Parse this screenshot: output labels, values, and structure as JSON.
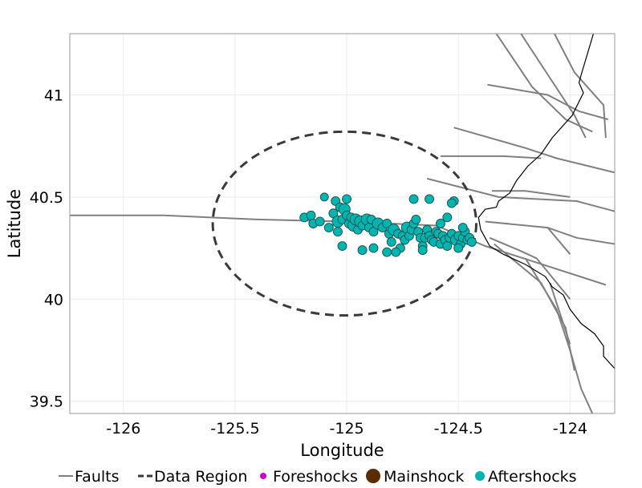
{
  "chart_data": {
    "type": "scatter",
    "title": "",
    "xlabel": "Longitude",
    "ylabel": "Latitude",
    "xlim": [
      -126.24,
      -123.8
    ],
    "ylim": [
      39.44,
      41.3
    ],
    "x_ticks": [
      -126,
      -125.5,
      -125,
      -124.5,
      -124
    ],
    "x_tick_labels": [
      "-126",
      "-125.5",
      "-125",
      "-124.5",
      "-124"
    ],
    "y_ticks": [
      39.5,
      40,
      40.5,
      41
    ],
    "y_tick_labels": [
      "39.5",
      "40",
      "40.5",
      "41"
    ],
    "grid": true,
    "legend_position": "bottom",
    "legend": [
      {
        "label": "Faults",
        "kind": "solid-line",
        "color": "#808080"
      },
      {
        "label": "Data Region",
        "kind": "dashed-line",
        "color": "#3a3a3a"
      },
      {
        "label": "Foreshocks",
        "kind": "small-point",
        "color": "#cc00cc"
      },
      {
        "label": "Mainshock",
        "kind": "large-point",
        "color": "#5a2d00"
      },
      {
        "label": "Aftershocks",
        "kind": "point",
        "color": "#00b5b0"
      }
    ],
    "data_region": {
      "center": [
        -125.01,
        40.37
      ],
      "radius_lon": 0.59,
      "radius_lat": 0.45
    },
    "coastline": [
      [
        -123.89,
        41.32
      ],
      [
        -123.95,
        41.1
      ],
      [
        -123.96,
        41.06
      ],
      [
        -123.94,
        41.01
      ],
      [
        -123.99,
        40.9
      ],
      [
        -124.08,
        40.79
      ],
      [
        -124.13,
        40.71
      ],
      [
        -124.19,
        40.65
      ],
      [
        -124.24,
        40.58
      ],
      [
        -124.27,
        40.52
      ],
      [
        -124.32,
        40.48
      ],
      [
        -124.33,
        40.45
      ],
      [
        -124.38,
        40.44
      ],
      [
        -124.41,
        40.4
      ],
      [
        -124.4,
        40.34
      ],
      [
        -124.38,
        40.3
      ],
      [
        -124.36,
        40.26
      ],
      [
        -124.3,
        40.22
      ],
      [
        -124.2,
        40.17
      ],
      [
        -124.11,
        40.11
      ],
      [
        -124.08,
        40.06
      ],
      [
        -124.03,
        40.02
      ],
      [
        -124.0,
        39.95
      ],
      [
        -123.95,
        39.88
      ],
      [
        -123.89,
        39.83
      ],
      [
        -123.85,
        39.77
      ],
      [
        -123.85,
        39.72
      ],
      [
        -123.8,
        39.66
      ]
    ],
    "faults": [
      [
        [
          -126.24,
          40.41
        ],
        [
          -125.82,
          40.41
        ],
        [
          -125.4,
          40.39
        ],
        [
          -125.0,
          40.38
        ],
        [
          -124.6,
          40.36
        ],
        [
          -124.38,
          40.26
        ],
        [
          -124.18,
          40.19
        ],
        [
          -123.84,
          40.07
        ]
      ],
      [
        [
          -124.33,
          41.3
        ],
        [
          -124.17,
          41.04
        ],
        [
          -124.02,
          40.88
        ],
        [
          -123.9,
          40.82
        ]
      ],
      [
        [
          -124.22,
          41.3
        ],
        [
          -124.1,
          41.1
        ],
        [
          -123.98,
          40.9
        ],
        [
          -123.93,
          40.79
        ]
      ],
      [
        [
          -124.07,
          41.3
        ],
        [
          -123.98,
          41.11
        ],
        [
          -123.85,
          40.95
        ],
        [
          -123.84,
          40.79
        ]
      ],
      [
        [
          -124.37,
          41.05
        ],
        [
          -124.1,
          41.0
        ],
        [
          -123.96,
          40.92
        ],
        [
          -123.83,
          40.88
        ]
      ],
      [
        [
          -124.52,
          40.84
        ],
        [
          -124.2,
          40.74
        ],
        [
          -124.06,
          40.69
        ],
        [
          -123.8,
          40.62
        ]
      ],
      [
        [
          -124.58,
          40.7
        ],
        [
          -124.3,
          40.7
        ],
        [
          -124.13,
          40.69
        ]
      ],
      [
        [
          -124.64,
          40.59
        ],
        [
          -124.32,
          40.5
        ],
        [
          -123.97,
          40.48
        ],
        [
          -123.8,
          40.43
        ]
      ],
      [
        [
          -124.35,
          40.53
        ],
        [
          -124.2,
          40.53
        ],
        [
          -124.0,
          40.5
        ]
      ],
      [
        [
          -124.38,
          40.38
        ],
        [
          -124.1,
          40.35
        ],
        [
          -123.97,
          40.3
        ],
        [
          -123.8,
          40.27
        ]
      ],
      [
        [
          -124.1,
          40.35
        ],
        [
          -124.0,
          40.22
        ]
      ],
      [
        [
          -124.36,
          40.3
        ],
        [
          -124.23,
          40.24
        ],
        [
          -124.15,
          40.2
        ],
        [
          -124.0,
          40.0
        ]
      ],
      [
        [
          -124.34,
          40.27
        ],
        [
          -124.13,
          40.08
        ],
        [
          -124.02,
          39.86
        ],
        [
          -123.98,
          39.65
        ]
      ],
      [
        [
          -124.2,
          40.2
        ],
        [
          -124.06,
          39.95
        ],
        [
          -124.0,
          39.75
        ],
        [
          -123.95,
          39.56
        ],
        [
          -123.9,
          39.44
        ]
      ],
      [
        [
          -124.09,
          40.08
        ],
        [
          -124.0,
          39.78
        ]
      ]
    ],
    "series": [
      {
        "name": "Aftershocks",
        "color": "#00b5b0",
        "points": [
          [
            -125.19,
            40.4,
            1
          ],
          [
            -125.16,
            40.41,
            1
          ],
          [
            -125.15,
            40.37,
            1
          ],
          [
            -125.12,
            40.38,
            1
          ],
          [
            -125.1,
            40.5,
            0
          ],
          [
            -125.08,
            40.35,
            1
          ],
          [
            -125.06,
            40.42,
            1
          ],
          [
            -125.05,
            40.48,
            1
          ],
          [
            -125.04,
            40.38,
            2
          ],
          [
            -125.04,
            40.33,
            1
          ],
          [
            -125.03,
            40.45,
            1
          ],
          [
            -125.02,
            40.39,
            1
          ],
          [
            -125.01,
            40.44,
            2
          ],
          [
            -125.0,
            40.41,
            1
          ],
          [
            -125.0,
            40.49,
            1
          ],
          [
            -124.99,
            40.37,
            1
          ],
          [
            -124.98,
            40.4,
            1
          ],
          [
            -124.97,
            40.36,
            2
          ],
          [
            -124.96,
            40.39,
            2
          ],
          [
            -124.95,
            40.34,
            1
          ],
          [
            -124.94,
            40.38,
            2
          ],
          [
            -124.93,
            40.36,
            1
          ],
          [
            -124.91,
            40.39,
            2
          ],
          [
            -124.9,
            40.35,
            1
          ],
          [
            -124.89,
            40.39,
            1
          ],
          [
            -124.88,
            40.33,
            1
          ],
          [
            -124.86,
            40.37,
            2
          ],
          [
            -124.84,
            40.35,
            1
          ],
          [
            -124.82,
            40.37,
            1
          ],
          [
            -124.81,
            40.32,
            1
          ],
          [
            -124.8,
            40.28,
            1
          ],
          [
            -124.79,
            40.34,
            2
          ],
          [
            -124.77,
            40.32,
            1
          ],
          [
            -124.76,
            40.25,
            1
          ],
          [
            -124.75,
            40.31,
            1
          ],
          [
            -124.74,
            40.29,
            1
          ],
          [
            -124.73,
            40.35,
            2
          ],
          [
            -124.72,
            40.31,
            1
          ],
          [
            -124.71,
            40.34,
            1
          ],
          [
            -124.7,
            40.37,
            1
          ],
          [
            -124.69,
            40.39,
            1
          ],
          [
            -124.68,
            40.33,
            1
          ],
          [
            -124.67,
            40.3,
            1
          ],
          [
            -124.66,
            40.26,
            1
          ],
          [
            -124.65,
            40.3,
            1
          ],
          [
            -124.64,
            40.34,
            1
          ],
          [
            -124.63,
            40.31,
            1
          ],
          [
            -124.62,
            40.29,
            1
          ],
          [
            -124.61,
            40.28,
            1
          ],
          [
            -124.6,
            40.33,
            1
          ],
          [
            -124.59,
            40.32,
            1
          ],
          [
            -124.58,
            40.27,
            1
          ],
          [
            -124.57,
            40.31,
            1
          ],
          [
            -124.56,
            40.29,
            1
          ],
          [
            -124.55,
            40.26,
            1
          ],
          [
            -124.54,
            40.3,
            1
          ],
          [
            -124.53,
            40.32,
            1
          ],
          [
            -124.52,
            40.48,
            1
          ],
          [
            -124.51,
            40.29,
            2
          ],
          [
            -124.5,
            40.31,
            1
          ],
          [
            -124.49,
            40.27,
            1
          ],
          [
            -124.48,
            40.3,
            1
          ],
          [
            -124.47,
            40.33,
            1
          ],
          [
            -124.46,
            40.29,
            1
          ],
          [
            -124.45,
            40.3,
            1
          ],
          [
            -124.44,
            40.28,
            1
          ],
          [
            -124.55,
            40.4,
            1
          ],
          [
            -124.58,
            40.37,
            1
          ],
          [
            -124.7,
            40.49,
            1
          ],
          [
            -124.63,
            40.49,
            1
          ],
          [
            -124.53,
            40.47,
            1
          ],
          [
            -124.93,
            40.24,
            1
          ],
          [
            -124.88,
            40.25,
            1
          ],
          [
            -124.82,
            40.23,
            1
          ],
          [
            -124.78,
            40.23,
            1
          ],
          [
            -124.66,
            40.24,
            1
          ],
          [
            -125.02,
            40.26,
            1
          ],
          [
            -124.48,
            40.35,
            1
          ],
          [
            -124.5,
            40.25,
            1
          ]
        ]
      },
      {
        "name": "Foreshocks",
        "color": "#cc00cc",
        "points": []
      },
      {
        "name": "Mainshock",
        "color": "#5a2d00",
        "points": []
      }
    ]
  }
}
